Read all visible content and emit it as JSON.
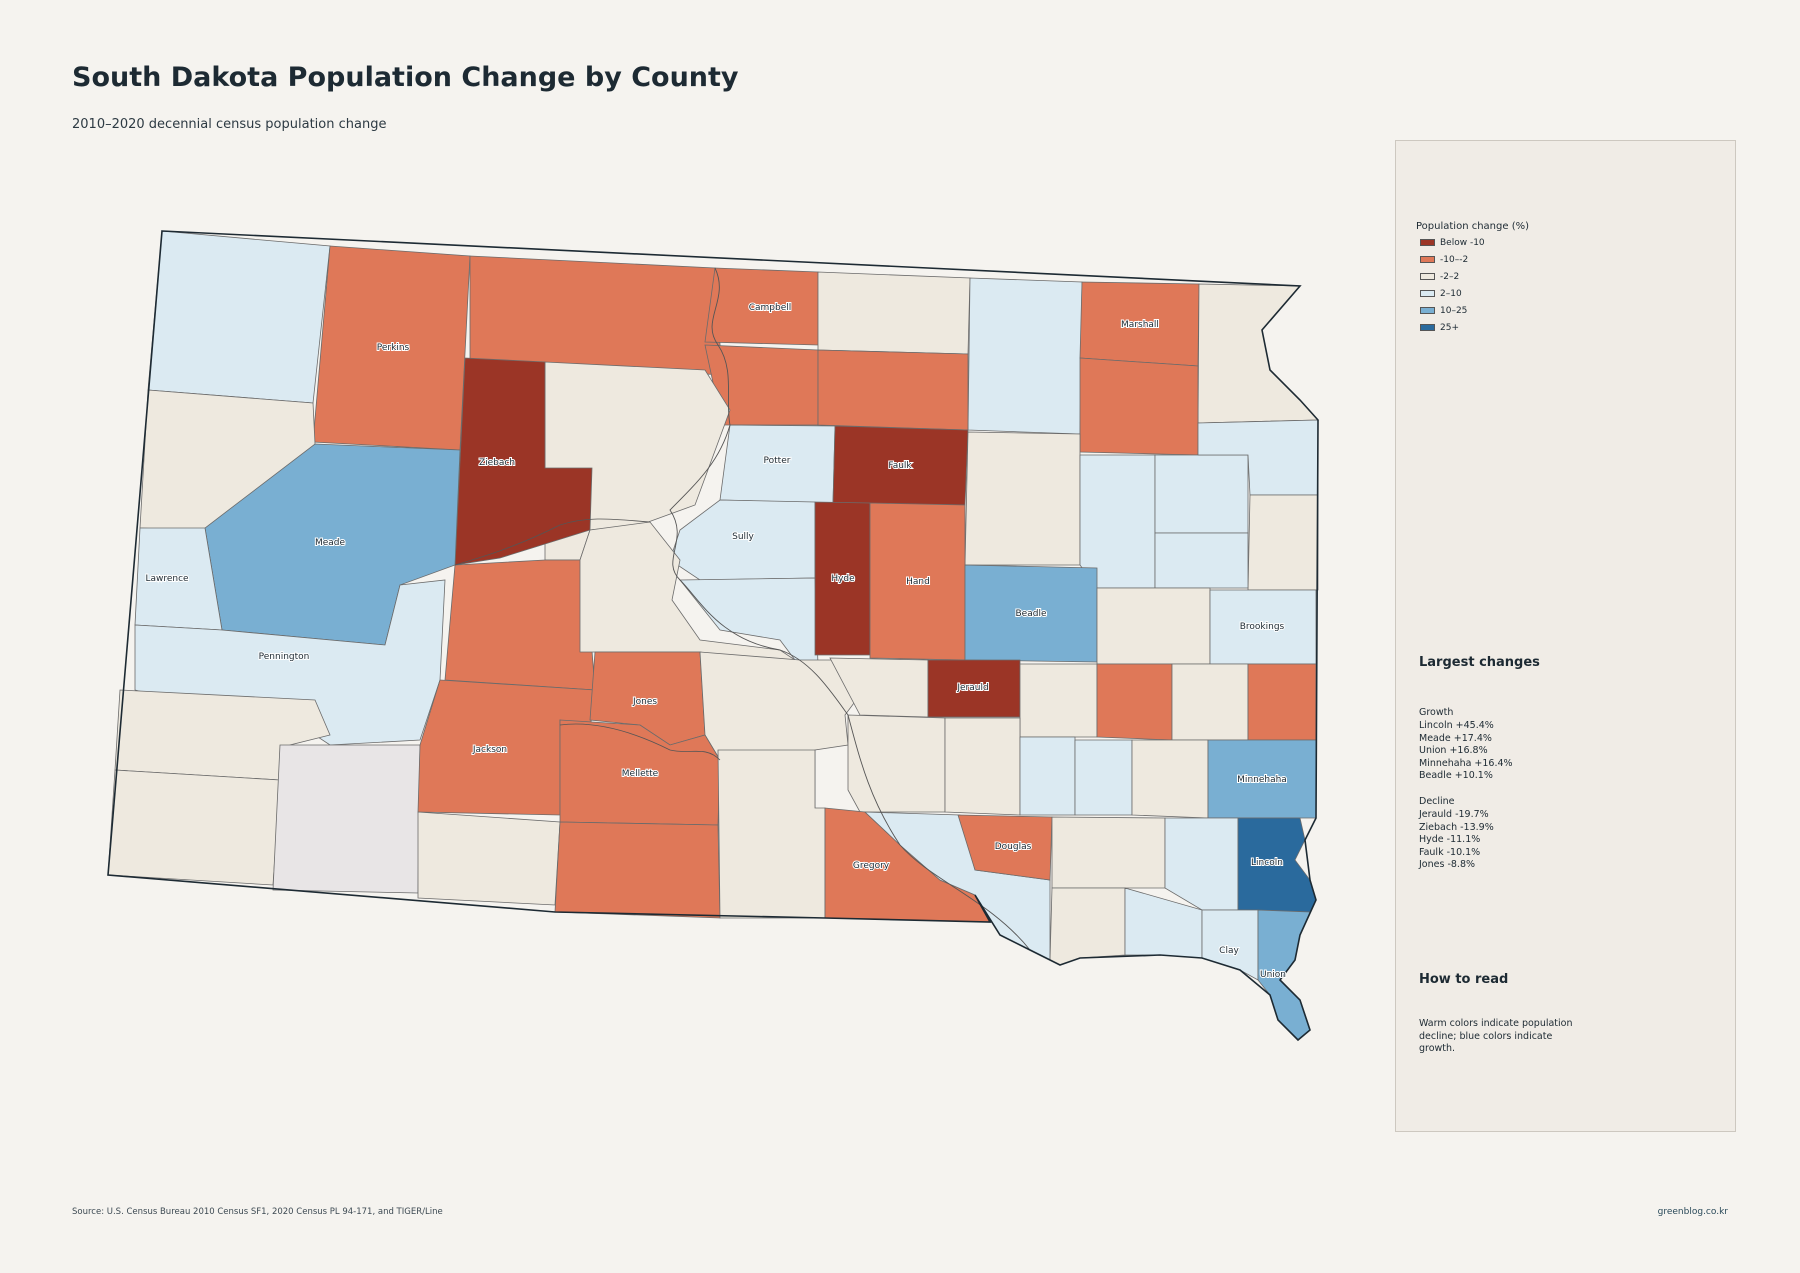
{
  "header": {
    "title": "South Dakota Population Change by County",
    "subtitle": "2010–2020 decennial census population change"
  },
  "colors": {
    "below_-10": "#9b3526",
    "-10--2": "#df7858",
    "-2-2": "#eee9df",
    "2-10": "#dbeaf2",
    "10-25": "#79afd2",
    "25+": "#2a6a9d",
    "no_data": "#e8e5e6"
  },
  "legend": {
    "title": "Population change (%)",
    "items": [
      {
        "label": "Below -10",
        "color": "#9b3526"
      },
      {
        "label": "-10–-2",
        "color": "#df7858"
      },
      {
        "label": "-2–2",
        "color": "#eee9df"
      },
      {
        "label": "2–10",
        "color": "#dbeaf2"
      },
      {
        "label": "10–25",
        "color": "#79afd2"
      },
      {
        "label": "25+",
        "color": "#2a6a9d"
      }
    ]
  },
  "county_labels": {
    "campbell": "Campbell",
    "marshall": "Marshall",
    "perkins": "Perkins",
    "ziebach": "Ziebach",
    "potter": "Potter",
    "faulk": "Faulk",
    "meade": "Meade",
    "sully": "Sully",
    "lawrence": "Lawrence",
    "hyde": "Hyde",
    "hand": "Hand",
    "beadle": "Beadle",
    "brookings": "Brookings",
    "pennington": "Pennington",
    "jerauld": "Jerauld",
    "jones": "Jones",
    "jackson": "Jackson",
    "mellette": "Mellette",
    "minnehaha": "Minnehaha",
    "douglas": "Douglas",
    "gregory": "Gregory",
    "lincoln": "Lincoln",
    "clay": "Clay",
    "union": "Union"
  },
  "panel": {
    "largest_changes_title": "Largest changes",
    "growth_heading": "Growth",
    "growth": [
      "Lincoln  +45.4%",
      "Meade  +17.4%",
      "Union  +16.8%",
      "Minnehaha  +16.4%",
      "Beadle  +10.1%"
    ],
    "decline_heading": "Decline",
    "decline": [
      "Jerauld  -19.7%",
      "Ziebach  -13.9%",
      "Hyde  -11.1%",
      "Faulk  -10.1%",
      "Jones  -8.8%"
    ],
    "how_to_read_title": "How to read",
    "how_to_read_lines": [
      "Warm colors indicate population",
      "decline; blue colors indicate",
      "growth."
    ]
  },
  "footer": {
    "source": "Source: U.S. Census Bureau 2010 Census SF1, 2020 Census PL 94-171, and TIGER/Line",
    "credit": "greenblog.co.kr"
  }
}
